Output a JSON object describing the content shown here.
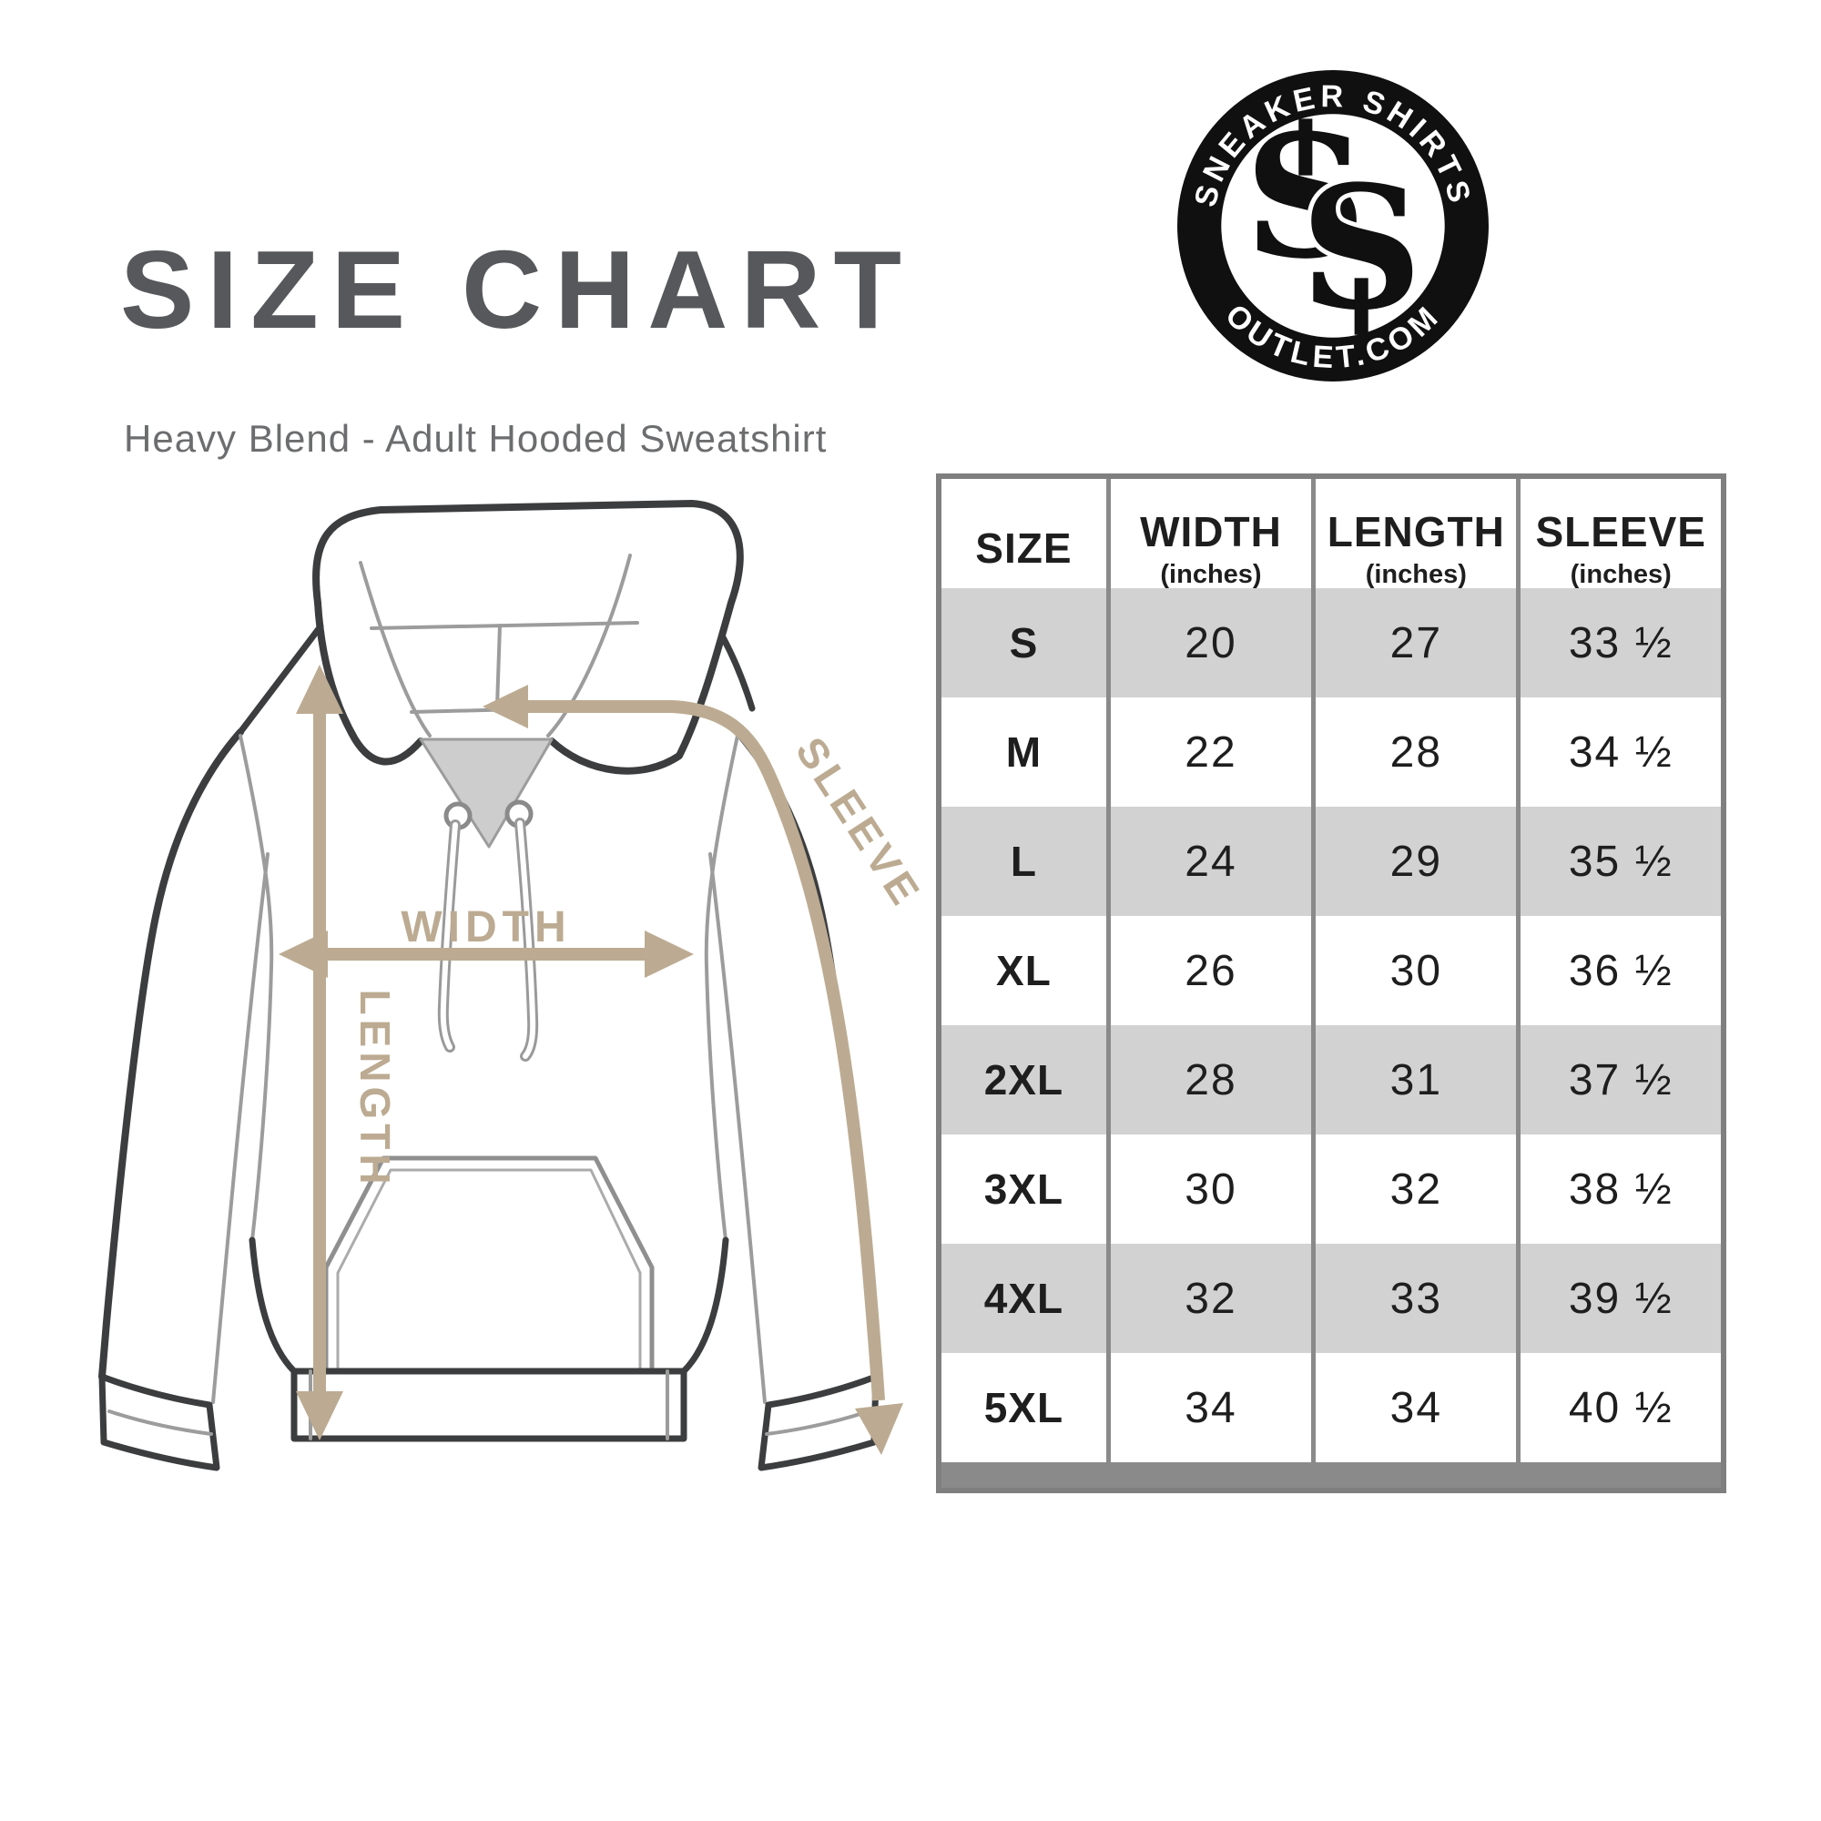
{
  "header": {
    "title": "SIZE CHART",
    "subtitle": "Heavy Blend - Adult Hooded Sweatshirt",
    "title_color": "#57585b"
  },
  "logo": {
    "top_text": "SNEAKER SHIRTS",
    "bottom_text": "OUTLET.COM",
    "monogram_left": "S",
    "monogram_right": "S"
  },
  "diagram": {
    "labels": {
      "width": "WIDTH",
      "length": "LENGTH",
      "sleeve": "SLEEVE"
    },
    "arrow_color": "#bcab92",
    "outline_color": "#3c3d3e"
  },
  "size_table": {
    "border_color": "#8a8a8a",
    "alt_row_fill": "#d2d2d2",
    "columns": [
      {
        "label": "SIZE",
        "sub": ""
      },
      {
        "label": "WIDTH",
        "sub": "(inches)"
      },
      {
        "label": "LENGTH",
        "sub": "(inches)"
      },
      {
        "label": "SLEEVE",
        "sub": "(inches)"
      }
    ],
    "rows": [
      {
        "size": "S",
        "width": "20",
        "length": "27",
        "sleeve": "33 ½"
      },
      {
        "size": "M",
        "width": "22",
        "length": "28",
        "sleeve": "34 ½"
      },
      {
        "size": "L",
        "width": "24",
        "length": "29",
        "sleeve": "35 ½"
      },
      {
        "size": "XL",
        "width": "26",
        "length": "30",
        "sleeve": "36 ½"
      },
      {
        "size": "2XL",
        "width": "28",
        "length": "31",
        "sleeve": "37 ½"
      },
      {
        "size": "3XL",
        "width": "30",
        "length": "32",
        "sleeve": "38 ½"
      },
      {
        "size": "4XL",
        "width": "32",
        "length": "33",
        "sleeve": "39 ½"
      },
      {
        "size": "5XL",
        "width": "34",
        "length": "34",
        "sleeve": "40 ½"
      }
    ]
  }
}
